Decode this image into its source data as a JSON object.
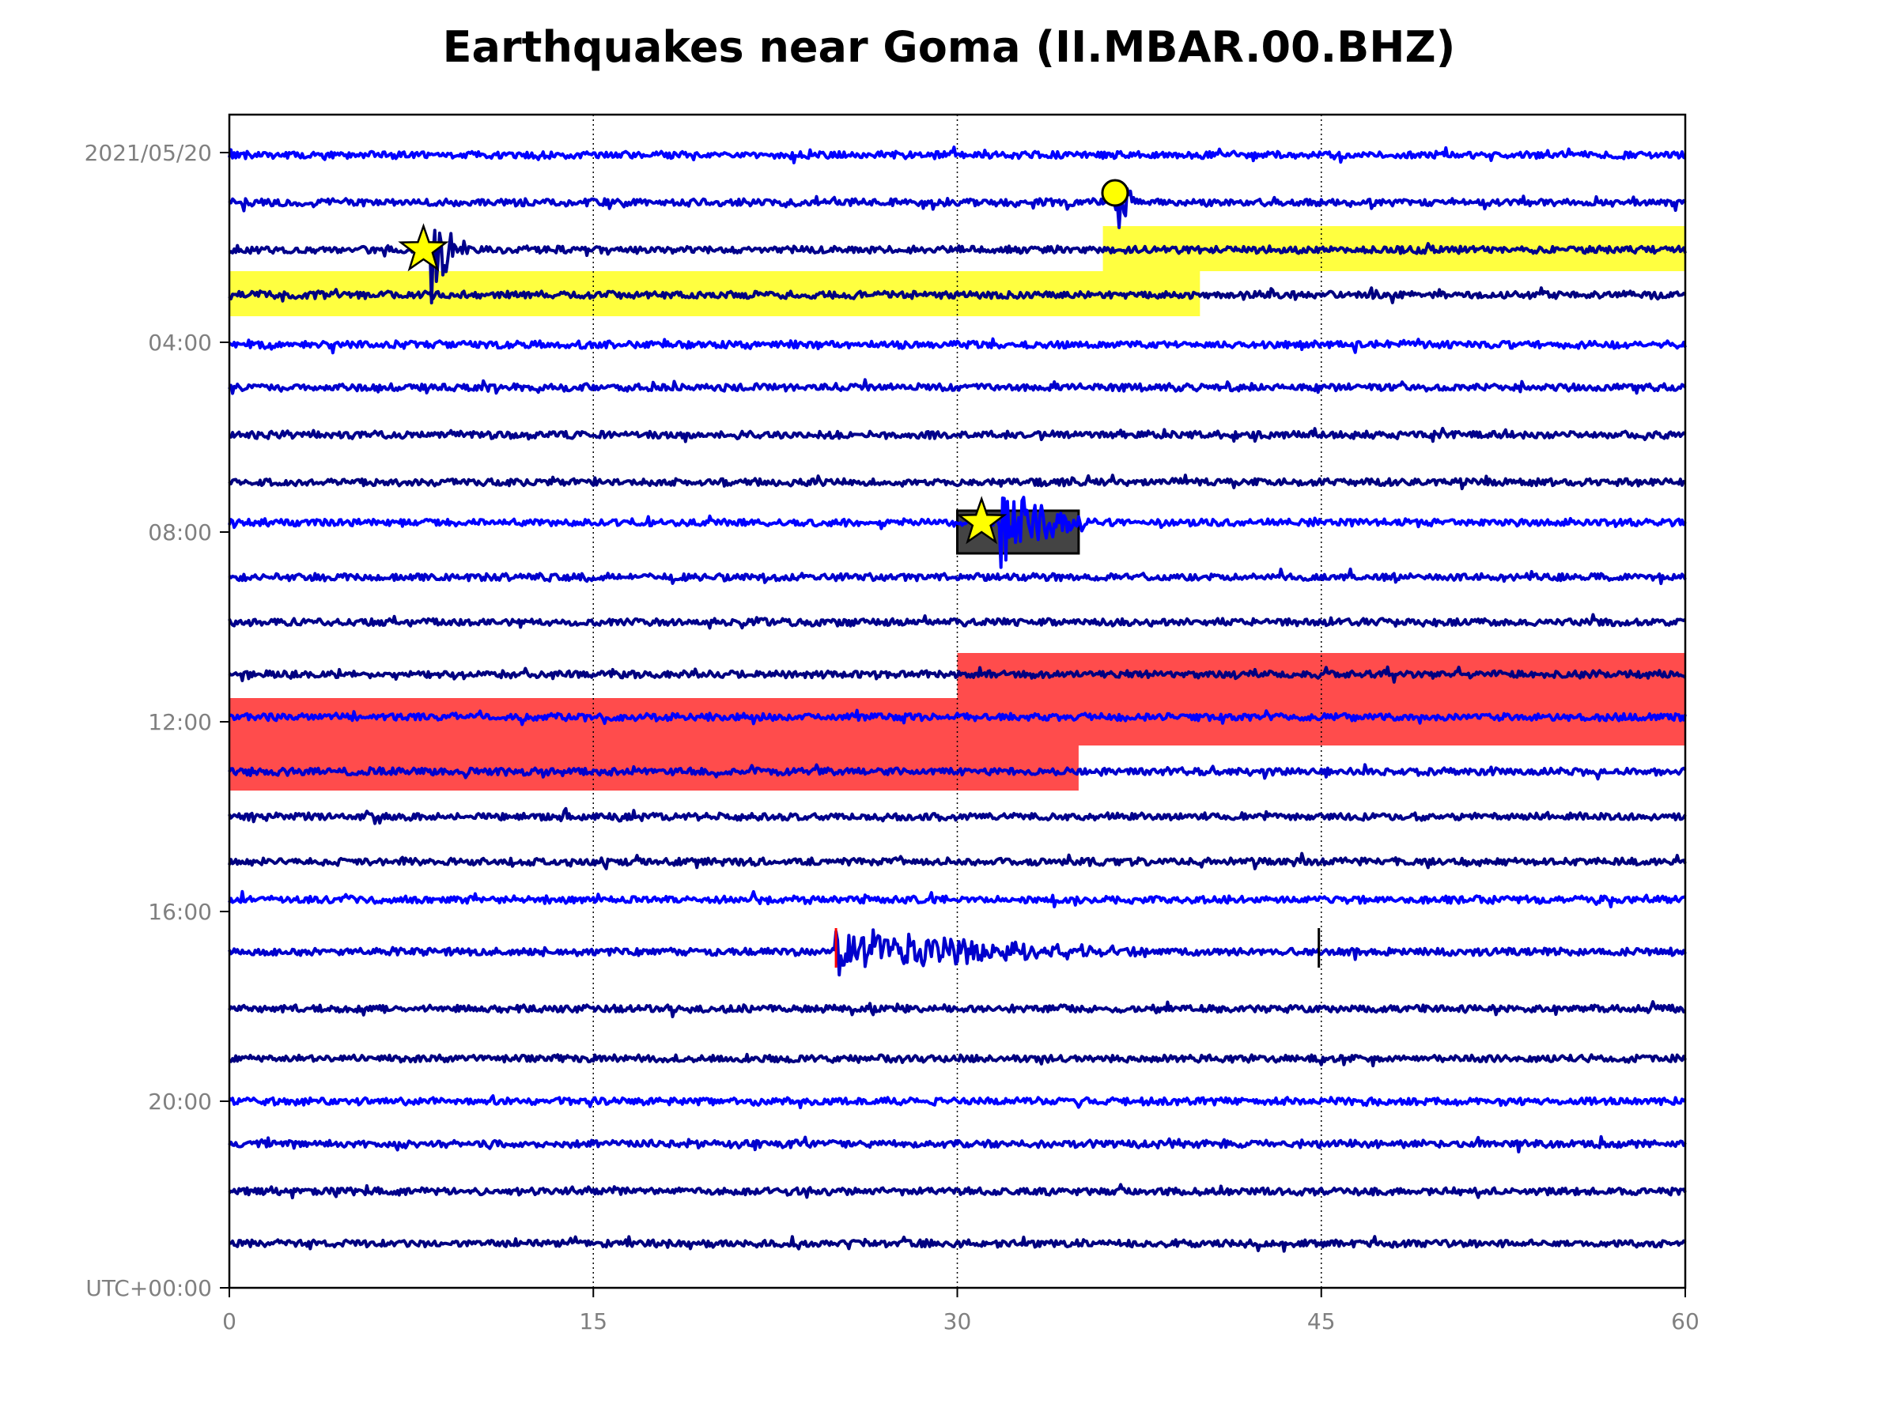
{
  "chart_data": {
    "type": "line",
    "title": "Earthquakes near Goma (II.MBAR.00.BHZ)",
    "xlabel": "",
    "ylabel": "",
    "xlim": [
      0,
      60
    ],
    "x_ticks": [
      "0",
      "15",
      "30",
      "45",
      "60"
    ],
    "y_tick_labels": [
      {
        "hour": 0,
        "label": "2021/05/20"
      },
      {
        "hour": 4,
        "label": "04:00"
      },
      {
        "hour": 8,
        "label": "08:00"
      },
      {
        "hour": 12,
        "label": "12:00"
      },
      {
        "hour": 16,
        "label": "16:00"
      },
      {
        "hour": 20,
        "label": "20:00"
      },
      {
        "hour": 24,
        "label": "UTC+00:00"
      }
    ],
    "vertical_grid_minutes": [
      15,
      30,
      45
    ],
    "trace_colors": [
      "#0000ff",
      "#0000cd",
      "#00008b",
      "#000080"
    ],
    "trace_baselines": [
      {
        "hour": 0,
        "offset": 0.05
      },
      {
        "hour": 1,
        "offset": 0.05
      },
      {
        "hour": 2,
        "offset": 0.05
      },
      {
        "hour": 3,
        "offset": 0.0
      },
      {
        "hour": 4,
        "offset": 0.05
      },
      {
        "hour": 5,
        "offset": -0.05
      },
      {
        "hour": 6,
        "offset": -0.05
      },
      {
        "hour": 7,
        "offset": -0.05
      },
      {
        "hour": 8,
        "offset": -0.2
      },
      {
        "hour": 9,
        "offset": -0.05
      },
      {
        "hour": 10,
        "offset": -0.1
      },
      {
        "hour": 11,
        "offset": 0.0
      },
      {
        "hour": 12,
        "offset": -0.1
      },
      {
        "hour": 13,
        "offset": 0.05
      },
      {
        "hour": 14,
        "offset": 0.0
      },
      {
        "hour": 15,
        "offset": -0.05
      },
      {
        "hour": 16,
        "offset": -0.25
      },
      {
        "hour": 17,
        "offset": -0.15
      },
      {
        "hour": 18,
        "offset": 0.05
      },
      {
        "hour": 19,
        "offset": 0.1
      },
      {
        "hour": 20,
        "offset": 0.0
      },
      {
        "hour": 21,
        "offset": -0.1
      },
      {
        "hour": 22,
        "offset": -0.1
      },
      {
        "hour": 23,
        "offset": 0.0
      }
    ],
    "event_boxes": [
      {
        "color": "#ffff00",
        "hour_from": 1.55,
        "hour_to": 2.5,
        "minute_from": 36,
        "minute_to": 60
      },
      {
        "color": "#ffff00",
        "hour_from": 2.5,
        "hour_to": 3.45,
        "minute_from": 0,
        "minute_to": 40
      },
      {
        "color": "#444444",
        "hour_from": 7.55,
        "hour_to": 8.45,
        "minute_from": 30,
        "minute_to": 35,
        "border": "#000000"
      },
      {
        "color": "#ff0000",
        "hour_from": 10.55,
        "hour_to": 11.5,
        "minute_from": 30,
        "minute_to": 60
      },
      {
        "color": "#ff0000",
        "hour_from": 11.5,
        "hour_to": 12.5,
        "minute_from": 0,
        "minute_to": 60
      },
      {
        "color": "#ff0000",
        "hour_from": 12.5,
        "hour_to": 13.45,
        "minute_from": 0,
        "minute_to": 35
      }
    ],
    "event_markers": [
      {
        "type": "star",
        "hour": 2,
        "minute": 8,
        "color": "#ffff00"
      },
      {
        "type": "circle",
        "hour": 1,
        "minute": 36.5,
        "color": "#ffff00"
      },
      {
        "type": "star",
        "hour": 8,
        "minute": 31,
        "color": "#ffff00"
      }
    ],
    "signals": [
      {
        "hour": 2,
        "minute": 8.3,
        "amplitude": 2.6,
        "duration": 1.5
      },
      {
        "hour": 1,
        "minute": 36.6,
        "amplitude": 1.1,
        "duration": 1.2
      },
      {
        "hour": 8,
        "minute": 31.8,
        "amplitude": 1.9,
        "duration": 3.5
      },
      {
        "hour": 17,
        "minute": 25,
        "amplitude": 1.0,
        "duration": 13
      }
    ],
    "phase_picks": [
      {
        "hour": 17,
        "minute": 25,
        "color": "#ff0000"
      },
      {
        "hour": 17,
        "minute": 44.9,
        "color": "#000000"
      }
    ]
  }
}
